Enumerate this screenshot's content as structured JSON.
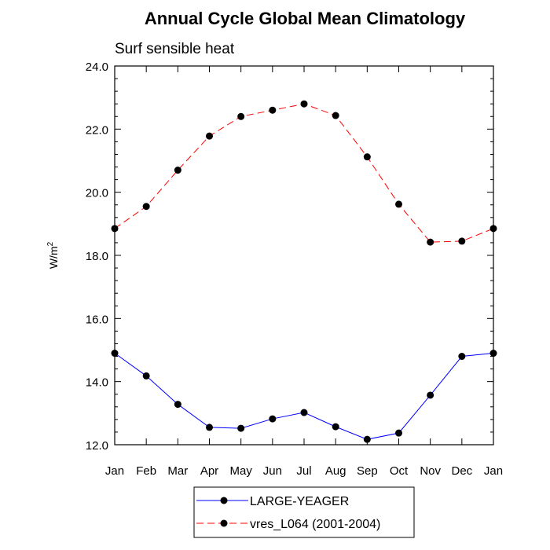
{
  "chart_data": {
    "type": "line",
    "title": "Annual Cycle Global Mean Climatology",
    "subtitle": "Surf sensible heat",
    "xlabel": "",
    "ylabel_base": "W/m",
    "ylabel_superscript": "2",
    "categories": [
      "Jan",
      "Feb",
      "Mar",
      "Apr",
      "May",
      "Jun",
      "Jul",
      "Aug",
      "Sep",
      "Oct",
      "Nov",
      "Dec",
      "Jan"
    ],
    "ylim": [
      12.0,
      24.0
    ],
    "yticks": [
      "12.0",
      "14.0",
      "16.0",
      "18.0",
      "20.0",
      "22.0",
      "24.0"
    ],
    "grid": false,
    "legend_position": "bottom-center",
    "series": [
      {
        "name": "LARGE-YEAGER",
        "color": "#0000ff",
        "line_style": "solid",
        "marker": "filled-circle",
        "values": [
          14.9,
          14.18,
          13.28,
          12.55,
          12.52,
          12.82,
          13.02,
          12.57,
          12.17,
          12.37,
          13.57,
          14.8,
          14.9
        ]
      },
      {
        "name": "vres_L064 (2001-2004)",
        "color": "#ff0000",
        "line_style": "dashed",
        "marker": "filled-circle",
        "values": [
          18.85,
          19.55,
          20.7,
          21.78,
          22.4,
          22.6,
          22.8,
          22.43,
          21.12,
          19.62,
          18.42,
          18.45,
          18.85
        ]
      }
    ]
  }
}
